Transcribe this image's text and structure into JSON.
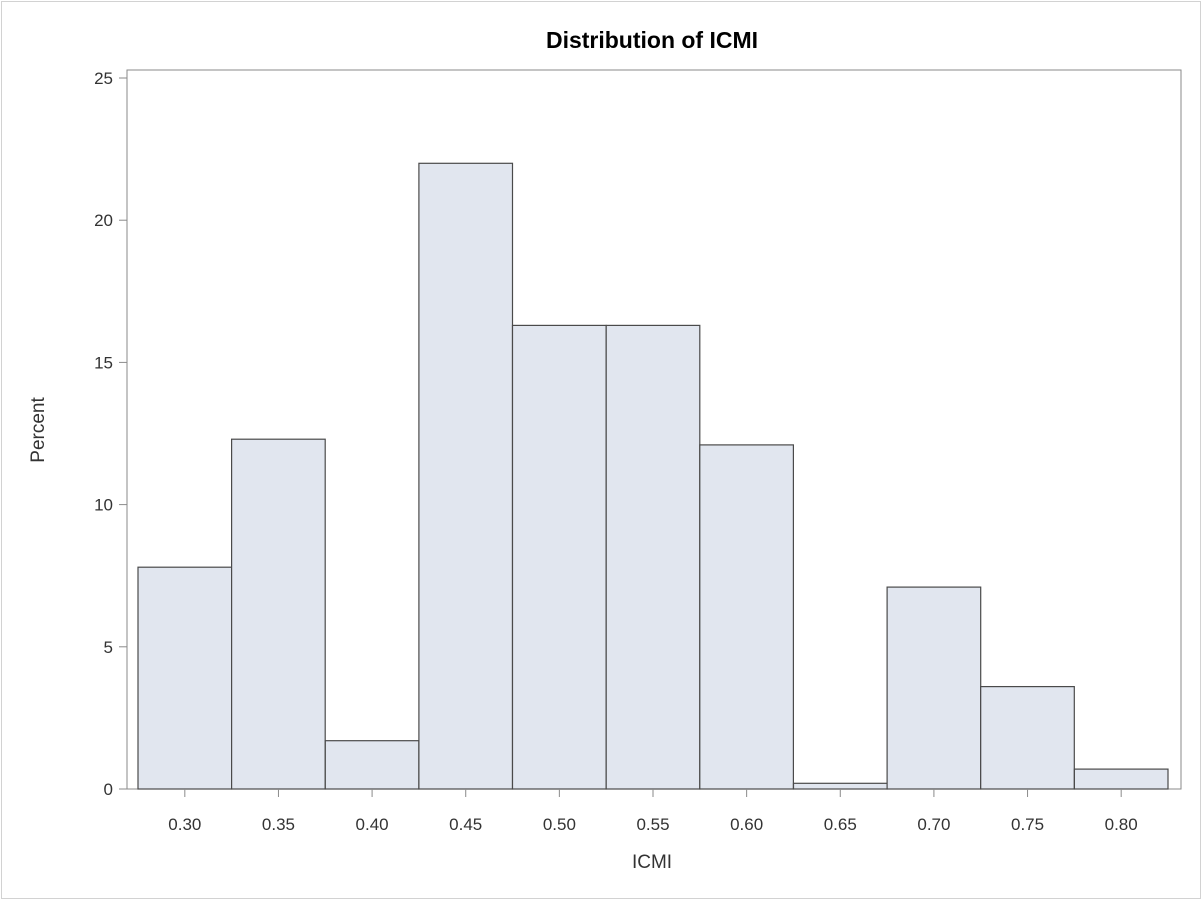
{
  "colors": {
    "bar_fill": "#e1e6ef",
    "bar_stroke": "#4a4a4a",
    "axis": "#8a8a8a",
    "text": "#333333"
  },
  "chart_data": {
    "type": "bar",
    "title": "Distribution of ICMI",
    "xlabel": "ICMI",
    "ylabel": "Percent",
    "bin_width": 0.05,
    "categories": [
      "0.30",
      "0.35",
      "0.40",
      "0.45",
      "0.50",
      "0.55",
      "0.60",
      "0.65",
      "0.70",
      "0.75",
      "0.80"
    ],
    "x": [
      0.3,
      0.35,
      0.4,
      0.45,
      0.5,
      0.55,
      0.6,
      0.65,
      0.7,
      0.75,
      0.8
    ],
    "values": [
      7.8,
      12.3,
      1.7,
      22.0,
      16.3,
      16.3,
      12.1,
      0.2,
      7.1,
      3.6,
      0.7
    ],
    "ylim": [
      0,
      25
    ],
    "yticks": [
      0,
      5,
      10,
      15,
      20,
      25
    ],
    "grid": false,
    "legend": "none"
  }
}
